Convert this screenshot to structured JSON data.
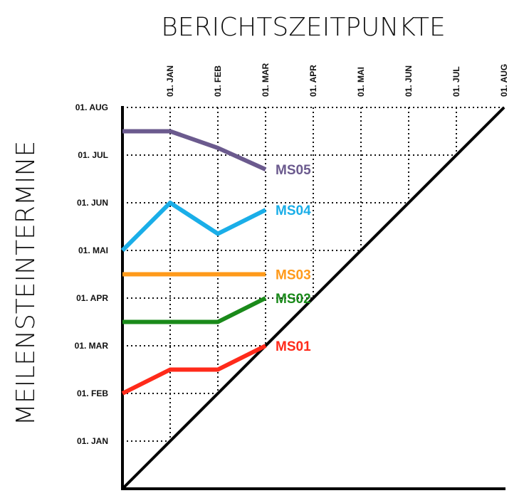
{
  "chart_data": {
    "type": "line",
    "title": "BERICHTSZEITPUNKTE",
    "xlabel": "",
    "ylabel": "MEILENSTEINTERMINE",
    "x_ticks": [
      "01. JAN",
      "01. FEB",
      "01. MAR",
      "01. APR",
      "01. MAI",
      "01. JUN",
      "01. JUL",
      "01. AUG"
    ],
    "y_ticks": [
      "01. JAN",
      "01. FEB",
      "01. MAR",
      "01. APR",
      "01. MAI",
      "01. JUN",
      "01. JUL",
      "01. AUG"
    ],
    "x_categories": [
      "",
      "01. JAN",
      "01. FEB",
      "01. MAR"
    ],
    "axis_range_months": [
      0,
      8
    ],
    "grid": true,
    "diagonal": true,
    "series": [
      {
        "name": "MS01",
        "color": "#ff2a1a",
        "values": [
          2.0,
          2.5,
          2.5,
          3.0
        ]
      },
      {
        "name": "MS02",
        "color": "#1a8a1a",
        "values": [
          3.5,
          3.5,
          3.5,
          4.0
        ]
      },
      {
        "name": "MS03",
        "color": "#ff9a1a",
        "values": [
          4.5,
          4.5,
          4.5,
          4.5
        ]
      },
      {
        "name": "MS04",
        "color": "#1aaee8",
        "values": [
          5.0,
          6.0,
          5.35,
          5.85
        ]
      },
      {
        "name": "MS05",
        "color": "#6b5a8e",
        "values": [
          7.5,
          7.5,
          7.15,
          6.7
        ]
      }
    ]
  }
}
